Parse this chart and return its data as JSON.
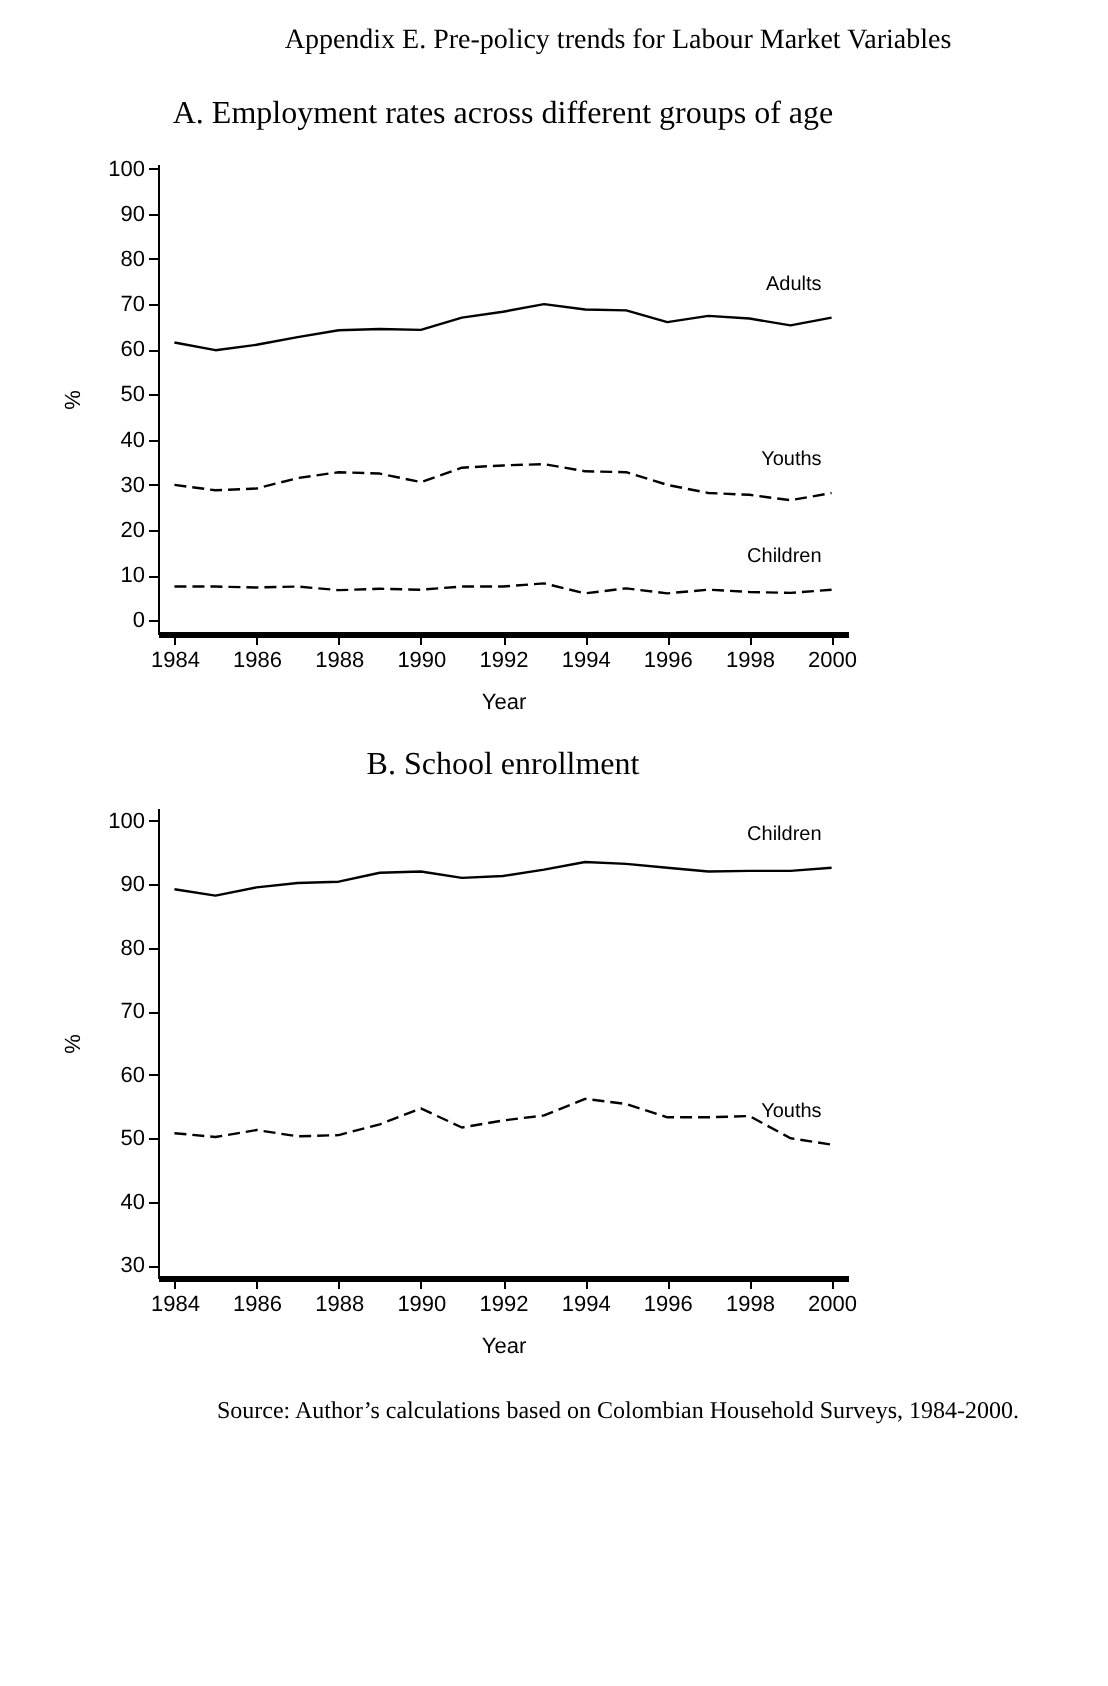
{
  "chart_data": [
    {
      "type": "line",
      "title": "A. Employment rates across different groups of age",
      "xlabel": "Year",
      "ylabel": "%",
      "annotations": [
        "Appendix E. Pre-policy trends for Labour Market Variables"
      ],
      "x": [
        1984,
        1985,
        1986,
        1987,
        1988,
        1989,
        1990,
        1991,
        1992,
        1993,
        1994,
        1995,
        1996,
        1997,
        1998,
        1999,
        2000
      ],
      "series": [
        {
          "name": "Adults",
          "color": "#000000",
          "line_style": "solid",
          "values": [
            61.5,
            59.8,
            61,
            62.7,
            64.2,
            64.5,
            64.3,
            67,
            68.3,
            70,
            68.8,
            68.6,
            66,
            67.4,
            66.8,
            65.3,
            67
          ]
        },
        {
          "name": "Youths",
          "color": "#000000",
          "line_style": "dashed",
          "values": [
            30,
            28.8,
            29.2,
            31.5,
            32.8,
            32.5,
            30.6,
            33.8,
            34.3,
            34.6,
            33,
            32.8,
            30,
            28.2,
            27.8,
            26.6,
            28.2
          ]
        },
        {
          "name": "Children",
          "color": "#000000",
          "line_style": "dashed",
          "values": [
            7.5,
            7.5,
            7.3,
            7.5,
            6.7,
            7,
            6.8,
            7.5,
            7.5,
            8.2,
            6,
            7.1,
            6,
            6.8,
            6.3,
            6.1,
            6.8
          ]
        }
      ],
      "xlim": [
        1983.6,
        2000.4
      ],
      "xticks": [
        1984,
        1986,
        1988,
        1990,
        1992,
        1994,
        1996,
        1998,
        2000
      ],
      "ylim": [
        -3,
        101
      ],
      "yticks": [
        0,
        10,
        20,
        30,
        40,
        50,
        60,
        70,
        80,
        90,
        100
      ],
      "grid": false,
      "legend": false,
      "marker": "none"
    },
    {
      "type": "line",
      "title": "B.  School enrollment",
      "xlabel": "Year",
      "ylabel": "%",
      "annotations": [
        "Source: Author’s calculations based on Colombian Household Surveys, 1984-2000."
      ],
      "x": [
        1984,
        1985,
        1986,
        1987,
        1988,
        1989,
        1990,
        1991,
        1992,
        1993,
        1994,
        1995,
        1996,
        1997,
        1998,
        1999,
        2000
      ],
      "series": [
        {
          "name": "Children",
          "color": "#000000",
          "line_style": "solid",
          "values": [
            89.2,
            88.2,
            89.5,
            90.2,
            90.4,
            91.8,
            92,
            91,
            91.3,
            92.3,
            93.5,
            93.2,
            92.6,
            92,
            92.1,
            92.1,
            92.6
          ]
        },
        {
          "name": "Youths",
          "color": "#000000",
          "line_style": "dashed",
          "values": [
            50.8,
            50.2,
            51.3,
            50.3,
            50.5,
            52.2,
            54.7,
            51.7,
            52.8,
            53.6,
            56.2,
            55.4,
            53.3,
            53.3,
            53.5,
            50,
            49
          ]
        }
      ],
      "xlim": [
        1983.6,
        2000.4
      ],
      "xticks": [
        1984,
        1986,
        1988,
        1990,
        1992,
        1994,
        1996,
        1998,
        2000
      ],
      "ylim": [
        28,
        102
      ],
      "yticks": [
        30,
        40,
        50,
        60,
        70,
        80,
        90,
        100
      ],
      "grid": false,
      "legend": false,
      "marker": "none"
    }
  ]
}
